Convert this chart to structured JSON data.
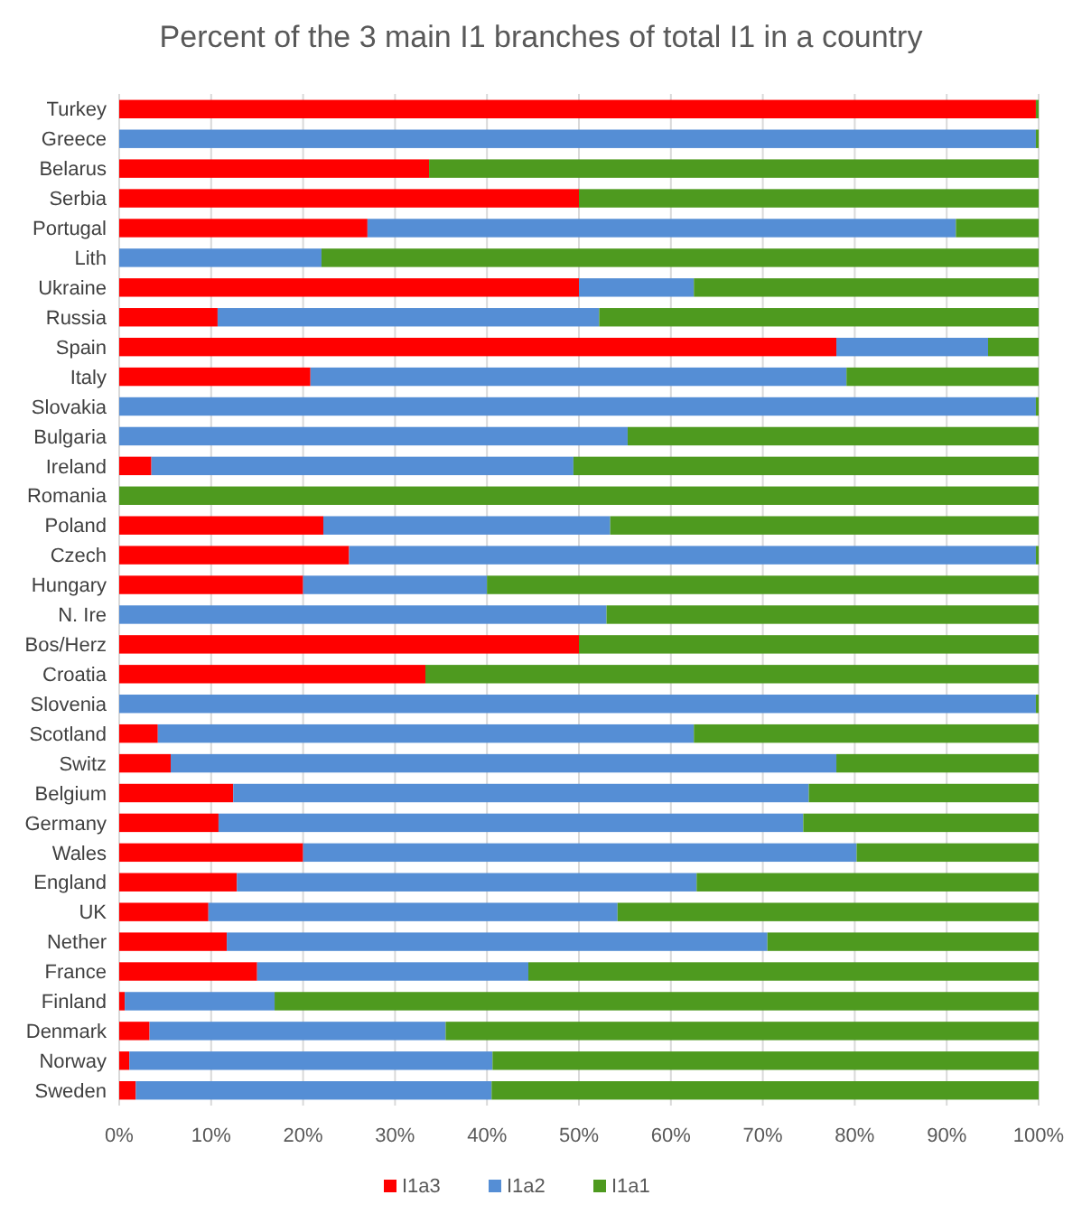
{
  "chart_data": {
    "type": "bar",
    "title": "Percent of the 3 main I1 branches of total I1 in a country",
    "orientation": "horizontal",
    "stacked": true,
    "categories": [
      "Turkey",
      "Greece",
      "Belarus",
      "Serbia",
      "Portugal",
      "Lith",
      "Ukraine",
      "Russia",
      "Spain",
      "Italy",
      "Slovakia",
      "Bulgaria",
      "Ireland",
      "Romania",
      "Poland",
      "Czech",
      "Hungary",
      "N. Ire",
      "Bos/Herz",
      "Croatia",
      "Slovenia",
      "Scotland",
      "Switz",
      "Belgium",
      "Germany",
      "Wales",
      "England",
      "UK",
      "Nether",
      "France",
      "Finland",
      "Denmark",
      "Norway",
      "Sweden"
    ],
    "series": [
      {
        "name": "I1a3",
        "color": "#ff0000",
        "values": [
          99.7,
          0,
          33.7,
          50,
          27,
          0,
          50,
          10.7,
          78,
          20.8,
          0,
          0,
          3.5,
          0,
          22.2,
          25,
          20,
          0,
          50,
          33.3,
          0,
          4.2,
          5.6,
          12.4,
          10.8,
          20,
          12.8,
          9.7,
          11.7,
          15,
          0.6,
          3.3,
          1.1,
          1.8
        ]
      },
      {
        "name": "I1a2",
        "color": "#558ed5",
        "values": [
          0,
          99.7,
          0,
          0,
          64,
          22,
          12.5,
          41.5,
          16.5,
          58.3,
          99.7,
          55.3,
          45.9,
          0,
          31.2,
          74.7,
          20,
          53,
          0,
          0,
          99.7,
          58.3,
          72.4,
          62.6,
          63.6,
          60.2,
          50,
          44.5,
          58.8,
          29.5,
          16.3,
          32.2,
          39.5,
          38.7
        ]
      },
      {
        "name": "I1a1",
        "color": "#4e9a1f",
        "values": [
          0.3,
          0.3,
          66.3,
          50,
          9,
          78,
          37.5,
          47.8,
          5.5,
          20.9,
          0.3,
          44.7,
          50.6,
          100,
          46.6,
          0.3,
          60,
          47,
          50,
          66.7,
          0.3,
          37.5,
          22,
          25,
          25.6,
          19.8,
          37.2,
          45.8,
          29.5,
          55.5,
          83.1,
          64.5,
          59.4,
          59.5
        ]
      }
    ],
    "xlim": [
      0,
      100
    ],
    "xticks": [
      {
        "value": 0,
        "label": "0%"
      },
      {
        "value": 10,
        "label": "10%"
      },
      {
        "value": 20,
        "label": "20%"
      },
      {
        "value": 30,
        "label": "30%"
      },
      {
        "value": 40,
        "label": "40%"
      },
      {
        "value": 50,
        "label": "50%"
      },
      {
        "value": 60,
        "label": "60%"
      },
      {
        "value": 70,
        "label": "70%"
      },
      {
        "value": 80,
        "label": "80%"
      },
      {
        "value": 90,
        "label": "90%"
      },
      {
        "value": 100,
        "label": "100%"
      }
    ],
    "grid": "x",
    "legend": "bottom"
  }
}
